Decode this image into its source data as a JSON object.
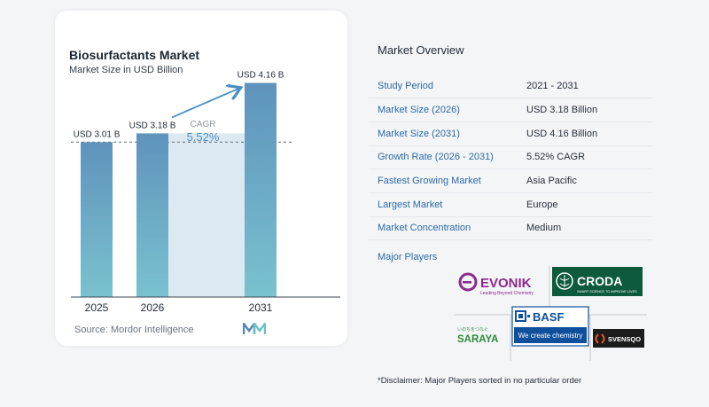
{
  "chart_data": {
    "type": "bar",
    "title": "Biosurfactants Market",
    "subtitle": "Market Size in USD Billion",
    "categories": [
      "2025",
      "2026",
      "2031"
    ],
    "values": [
      3.01,
      3.18,
      4.16
    ],
    "data_labels": [
      "USD 3.01 B",
      "USD 3.18 B",
      "USD 4.16 B"
    ],
    "ylim": [
      0,
      4.6
    ],
    "grid": false,
    "annotation": {
      "label": "CAGR",
      "value": "5.52%"
    },
    "colors": {
      "bar_top": "#5f93bc",
      "bar_bottom": "#79c2cf",
      "band": "#dce9f3",
      "arrow": "#4a8fc4"
    },
    "source": "Source: Mordor Intelligence"
  },
  "overview": {
    "title": "Market Overview",
    "rows": [
      {
        "key": "Study Period",
        "value": "2021 - 2031"
      },
      {
        "key": "Market Size (2026)",
        "value": "USD 3.18 Billion"
      },
      {
        "key": "Market Size (2031)",
        "value": "USD 4.16 Billion"
      },
      {
        "key": "Growth Rate (2026 - 2031)",
        "value": "5.52% CAGR"
      },
      {
        "key": "Fastest Growing Market",
        "value": "Asia Pacific"
      },
      {
        "key": "Largest Market",
        "value": "Europe"
      },
      {
        "key": "Market Concentration",
        "value": "Medium"
      }
    ],
    "major_players_label": "Major Players",
    "players": [
      {
        "name": "EVONIK",
        "tagline": "Leading Beyond Chemistry",
        "color": "#8a2a8c"
      },
      {
        "name": "CRODA",
        "tagline": "SMART SCIENCE TO IMPROVE LIVES",
        "color": "#0d5a3c"
      },
      {
        "name": "BASF",
        "tagline": "We create chemistry",
        "color": "#0f4f9c"
      },
      {
        "name": "SARAYA",
        "tagline": "いのちをつなぐ",
        "color": "#2d8a3c"
      },
      {
        "name": "SVENSQO",
        "tagline": "",
        "color": "#e4532a"
      }
    ],
    "disclaimer": "*Disclaimer: Major Players sorted in no particular order"
  }
}
